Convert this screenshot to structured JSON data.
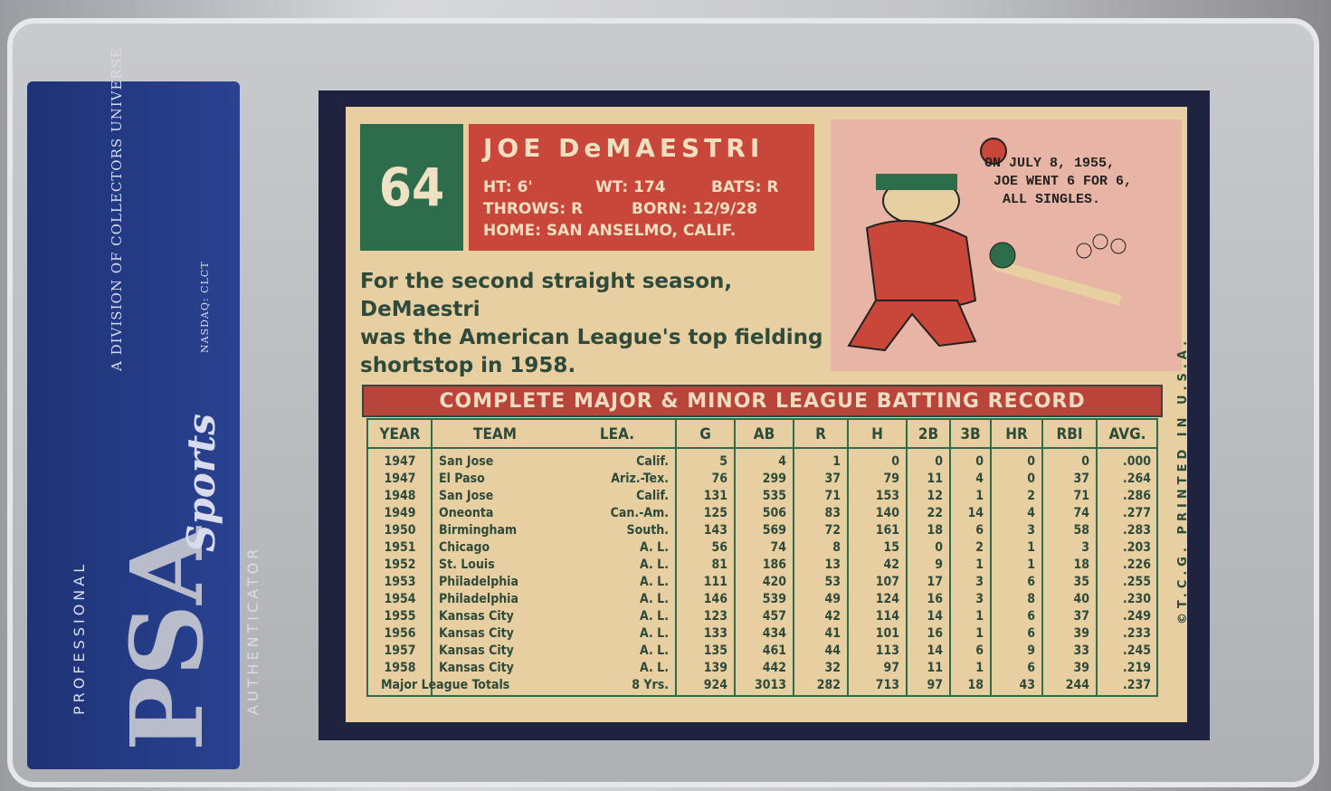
{
  "label": {
    "brand": "PSA",
    "brand_script": "Sports",
    "top": "PROFESSIONAL",
    "bottom": "AUTHENTICATOR",
    "division": "A DIVISION OF COLLECTORS UNIVERSE",
    "ticker": "NASDAQ: CLCT"
  },
  "card": {
    "number": "64",
    "name": "JOE DeMAESTRI",
    "stats": [
      "HT: 6'",
      "WT: 174",
      "BATS: R",
      "THROWS: R",
      "BORN: 12/9/28",
      "HOME: SAN ANSELMO, CALIF."
    ],
    "bio": [
      "For the second straight season, DeMaestri",
      "was the American League's top fielding",
      "shortstop in 1958."
    ],
    "cartoon": [
      "ON JULY 8, 1955,",
      "JOE WENT 6 FOR 6,",
      "ALL SINGLES."
    ],
    "imprint": "©T.C.G. PRINTED IN U.S.A."
  },
  "table": {
    "title": "COMPLETE MAJOR & MINOR LEAGUE BATTING RECORD",
    "headers": [
      "YEAR",
      "TEAM",
      "LEA.",
      "G",
      "AB",
      "R",
      "H",
      "2B",
      "3B",
      "HR",
      "RBI",
      "AVG."
    ],
    "rows": [
      [
        "1947",
        "San Jose",
        "Calif.",
        "5",
        "4",
        "1",
        "0",
        "0",
        "0",
        "0",
        "0",
        ".000"
      ],
      [
        "1947",
        "El Paso",
        "Ariz.-Tex.",
        "76",
        "299",
        "37",
        "79",
        "11",
        "4",
        "0",
        "37",
        ".264"
      ],
      [
        "1948",
        "San Jose",
        "Calif.",
        "131",
        "535",
        "71",
        "153",
        "12",
        "1",
        "2",
        "71",
        ".286"
      ],
      [
        "1949",
        "Oneonta",
        "Can.-Am.",
        "125",
        "506",
        "83",
        "140",
        "22",
        "14",
        "4",
        "74",
        ".277"
      ],
      [
        "1950",
        "Birmingham",
        "South.",
        "143",
        "569",
        "72",
        "161",
        "18",
        "6",
        "3",
        "58",
        ".283"
      ],
      [
        "1951",
        "Chicago",
        "A. L.",
        "56",
        "74",
        "8",
        "15",
        "0",
        "2",
        "1",
        "3",
        ".203"
      ],
      [
        "1952",
        "St. Louis",
        "A. L.",
        "81",
        "186",
        "13",
        "42",
        "9",
        "1",
        "1",
        "18",
        ".226"
      ],
      [
        "1953",
        "Philadelphia",
        "A. L.",
        "111",
        "420",
        "53",
        "107",
        "17",
        "3",
        "6",
        "35",
        ".255"
      ],
      [
        "1954",
        "Philadelphia",
        "A. L.",
        "146",
        "539",
        "49",
        "124",
        "16",
        "3",
        "8",
        "40",
        ".230"
      ],
      [
        "1955",
        "Kansas City",
        "A. L.",
        "123",
        "457",
        "42",
        "114",
        "14",
        "1",
        "6",
        "37",
        ".249"
      ],
      [
        "1956",
        "Kansas City",
        "A. L.",
        "133",
        "434",
        "41",
        "101",
        "16",
        "1",
        "6",
        "39",
        ".233"
      ],
      [
        "1957",
        "Kansas City",
        "A. L.",
        "135",
        "461",
        "44",
        "113",
        "14",
        "6",
        "9",
        "33",
        ".245"
      ],
      [
        "1958",
        "Kansas City",
        "A. L.",
        "139",
        "442",
        "32",
        "97",
        "11",
        "1",
        "6",
        "39",
        ".219"
      ]
    ],
    "totals": [
      "Major League Totals",
      "8 Yrs.",
      "924",
      "3013",
      "282",
      "713",
      "97",
      "18",
      "43",
      "244",
      ".237"
    ]
  }
}
